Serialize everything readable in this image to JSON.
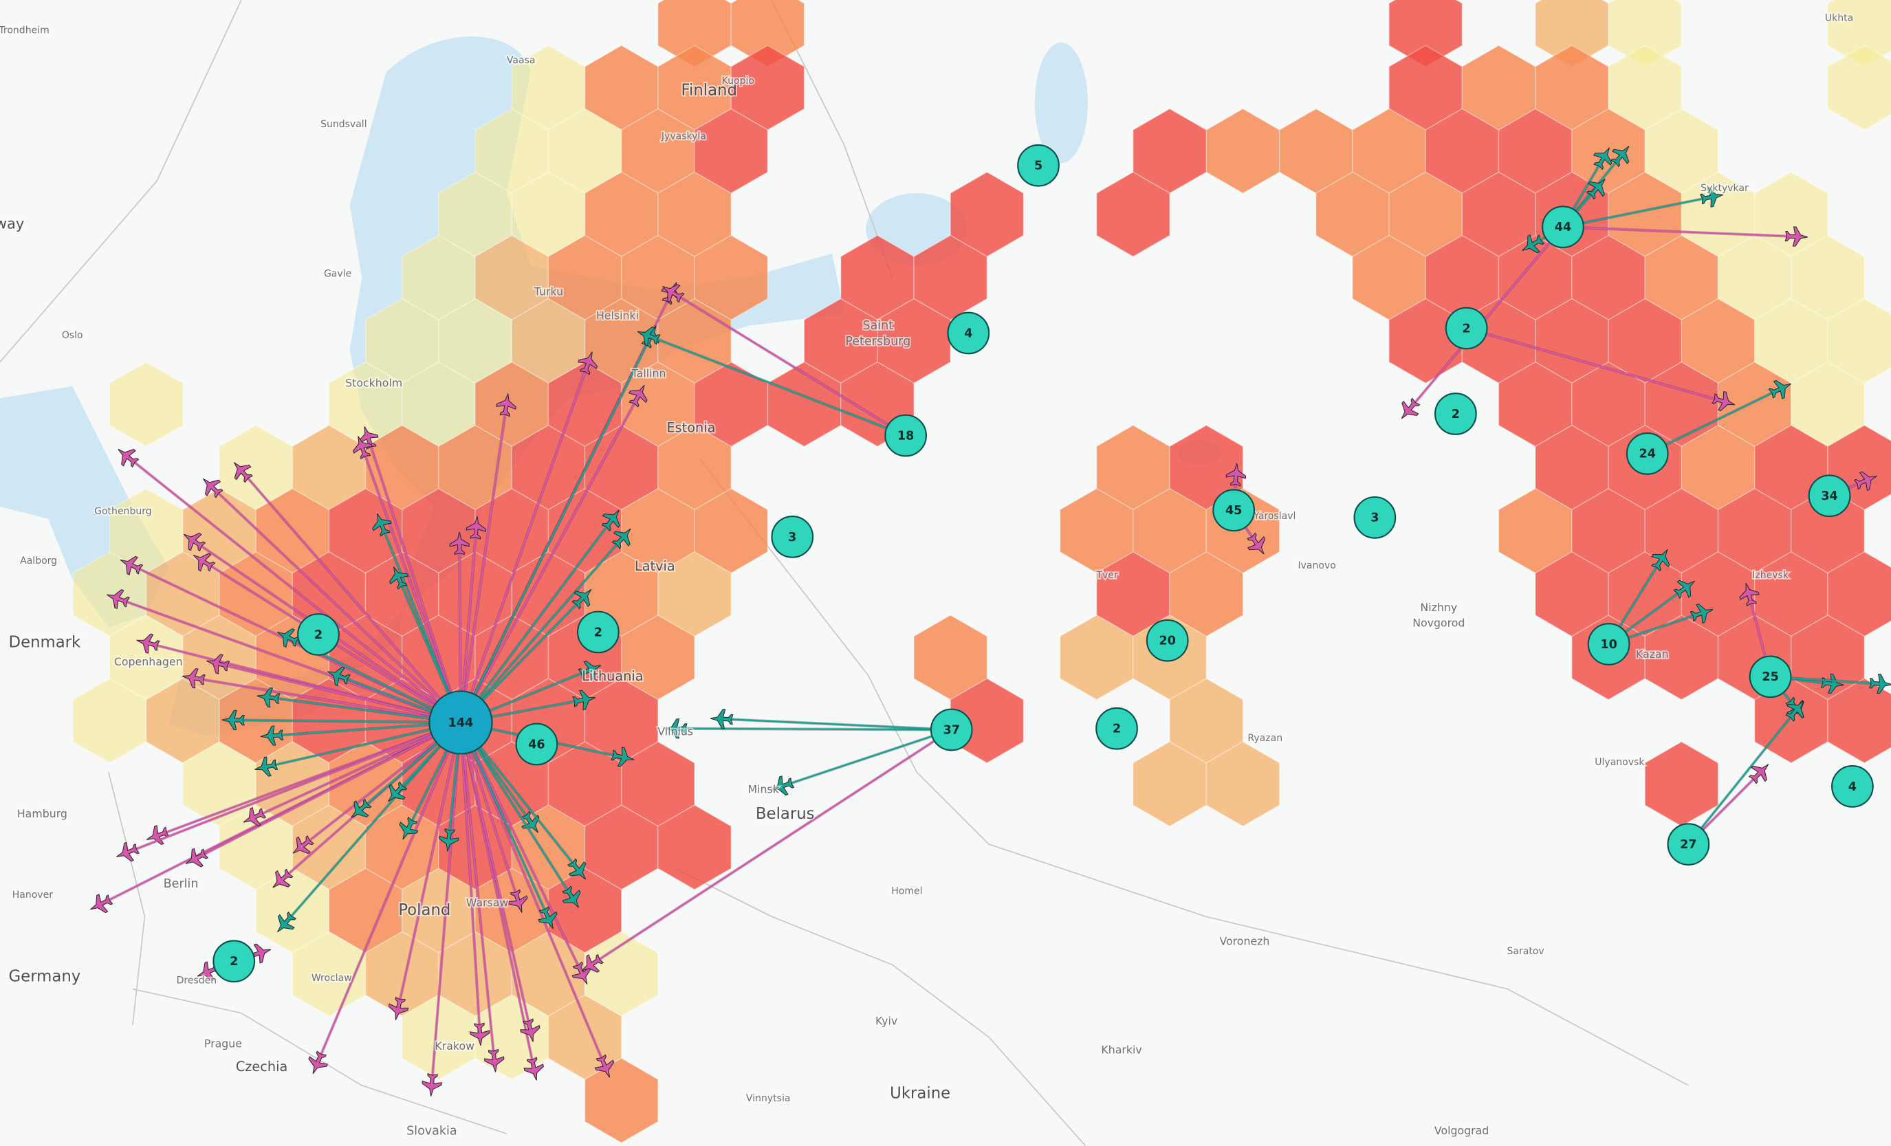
{
  "map": {
    "places": [
      {
        "text": "Trondheim"
      },
      {
        "text": "Vaasa"
      },
      {
        "text": "Finland"
      },
      {
        "text": "Kuopio"
      },
      {
        "text": "Jyvaskyla"
      },
      {
        "text": "Sundsvall"
      },
      {
        "text": "Stockholm"
      },
      {
        "text": "Gavle"
      },
      {
        "text": "Turku"
      },
      {
        "text": "Helsinki"
      },
      {
        "text": "Tallinn"
      },
      {
        "text": "Estonia"
      },
      {
        "text": "Saint"
      },
      {
        "text": "Petersburg"
      },
      {
        "text": "Oslo"
      },
      {
        "text": "way"
      },
      {
        "text": "Gothenburg"
      },
      {
        "text": "Aalborg"
      },
      {
        "text": "Denmark"
      },
      {
        "text": "Copenhagen"
      },
      {
        "text": "Latvia"
      },
      {
        "text": "Lithuania"
      },
      {
        "text": "Vilnius"
      },
      {
        "text": "Minsk"
      },
      {
        "text": "Belarus"
      },
      {
        "text": "Hamburg"
      },
      {
        "text": "Hanover"
      },
      {
        "text": "Berlin"
      },
      {
        "text": "Germany"
      },
      {
        "text": "Poland"
      },
      {
        "text": "Warsaw"
      },
      {
        "text": "Wroclaw"
      },
      {
        "text": "Dresden"
      },
      {
        "text": "Prague"
      },
      {
        "text": "Czechia"
      },
      {
        "text": "Krakow"
      },
      {
        "text": "Slovakia"
      },
      {
        "text": "Vinnytsia"
      },
      {
        "text": "Ukraine"
      },
      {
        "text": "Kyiv"
      },
      {
        "text": "Homel"
      },
      {
        "text": "Kharkiv"
      },
      {
        "text": "Voronezh"
      },
      {
        "text": "Ryazan"
      },
      {
        "text": "Yaroslavl"
      },
      {
        "text": "Tver"
      },
      {
        "text": "Ivanovo"
      },
      {
        "text": "Nizhny"
      },
      {
        "text": "Novgorod"
      },
      {
        "text": "Kazan"
      },
      {
        "text": "Izhevsk"
      },
      {
        "text": "Syktyvkar"
      },
      {
        "text": "Ukhta"
      },
      {
        "text": "Ulyanovsk"
      },
      {
        "text": "Saratov"
      },
      {
        "text": "Volgograd"
      }
    ],
    "clusters": [
      {
        "value": 144
      },
      {
        "value": 46
      },
      {
        "value": 2
      },
      {
        "value": 2
      },
      {
        "value": 2
      },
      {
        "value": 37
      },
      {
        "value": 18
      },
      {
        "value": 4
      },
      {
        "value": 5
      },
      {
        "value": 3
      },
      {
        "value": 3
      },
      {
        "value": 45
      },
      {
        "value": 20
      },
      {
        "value": 2
      },
      {
        "value": 44
      },
      {
        "value": 2
      },
      {
        "value": 2
      },
      {
        "value": 24
      },
      {
        "value": 34
      },
      {
        "value": 10
      },
      {
        "value": 25
      },
      {
        "value": 27
      },
      {
        "value": 4
      }
    ]
  }
}
